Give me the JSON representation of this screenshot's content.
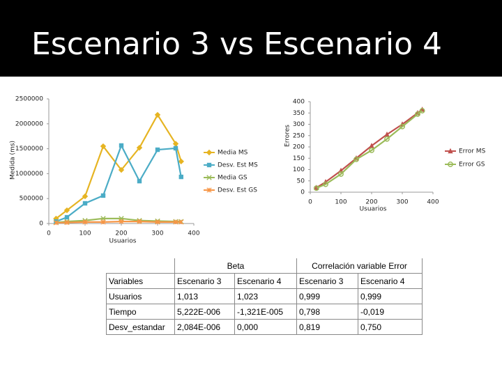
{
  "title": "Escenario 3 vs Escenario 4",
  "chart_data": [
    {
      "type": "line",
      "xlabel": "Usuarios",
      "ylabel": "Medida (ms)",
      "legend": "right",
      "x": [
        20,
        50,
        100,
        150,
        200,
        250,
        300,
        350,
        365
      ],
      "xlim": [
        0,
        400
      ],
      "xticks": [
        0,
        100,
        200,
        300,
        400
      ],
      "ylim": [
        0,
        2500000
      ],
      "yticks": [
        0,
        500000,
        1000000,
        1500000,
        2000000,
        2500000
      ],
      "series": [
        {
          "name": "Media MS",
          "color": "#e6b422",
          "marker": "diamond",
          "values": [
            98000,
            265000,
            545000,
            1550000,
            1075000,
            1520000,
            2180000,
            1600000,
            1245000
          ]
        },
        {
          "name": "Desv. Est MS",
          "color": "#4bacc6",
          "marker": "square",
          "values": [
            40000,
            125000,
            405000,
            560000,
            1565000,
            850000,
            1480000,
            1510000,
            935000
          ]
        },
        {
          "name": "Media GS",
          "color": "#9bbb59",
          "marker": "x",
          "values": [
            20000,
            40000,
            60000,
            100000,
            100000,
            60000,
            50000,
            40000,
            40000
          ]
        },
        {
          "name": "Desv. Est GS",
          "color": "#f79646",
          "marker": "star",
          "values": [
            15000,
            20000,
            30000,
            30000,
            40000,
            40000,
            30000,
            30000,
            30000
          ]
        }
      ]
    },
    {
      "type": "line",
      "xlabel": "Usuarios",
      "ylabel": "Errores",
      "legend": "right",
      "x": [
        20,
        50,
        100,
        150,
        200,
        250,
        300,
        350,
        365
      ],
      "xlim": [
        0,
        400
      ],
      "xticks": [
        0,
        100,
        200,
        300,
        400
      ],
      "ylim": [
        0,
        400
      ],
      "yticks": [
        0,
        50,
        100,
        150,
        200,
        250,
        300,
        350,
        400
      ],
      "series": [
        {
          "name": "Error MS",
          "color": "#c0504d",
          "marker": "triangle",
          "values": [
            20,
            45,
            95,
            150,
            205,
            255,
            300,
            350,
            365
          ]
        },
        {
          "name": "Error GS",
          "color": "#9bbb59",
          "marker": "circle",
          "values": [
            18,
            35,
            80,
            145,
            185,
            235,
            290,
            345,
            360
          ]
        }
      ]
    }
  ],
  "table": {
    "groups": [
      "Beta",
      "Correlación variable Error"
    ],
    "header": [
      "Variables",
      "Escenario 3",
      "Escenario 4",
      "Escenario 3",
      "Escenario 4"
    ],
    "rows": [
      [
        "Usuarios",
        "1,013",
        "1,023",
        "0,999",
        "0,999"
      ],
      [
        "Tiempo",
        "5,222E-006",
        "-1,321E-005",
        "0,798",
        "-0,019"
      ],
      [
        "Desv_estandar",
        "2,084E-006",
        "0,000",
        "0,819",
        "0,750"
      ]
    ]
  }
}
